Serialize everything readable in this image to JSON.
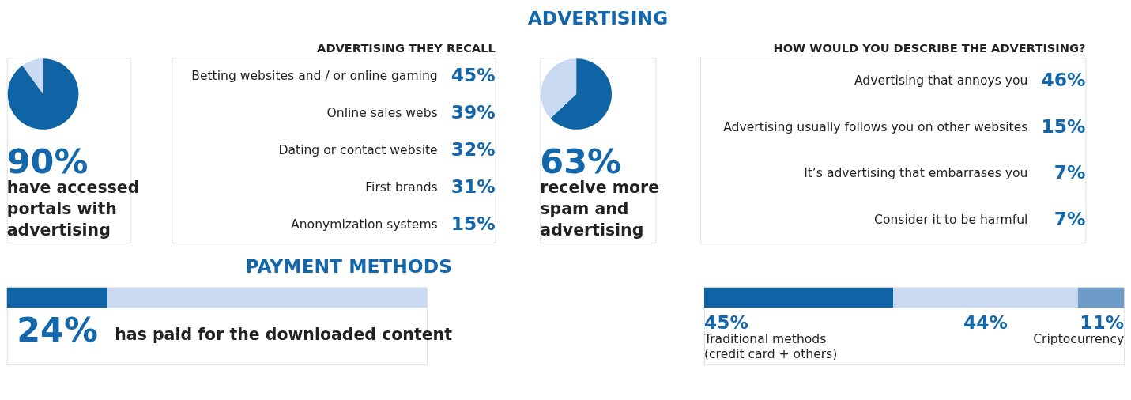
{
  "chart_data": [
    {
      "type": "pie",
      "categories": [
        null,
        null
      ],
      "values": [
        90,
        10
      ],
      "colors": [
        "#0f64a5",
        "#c9d9f1"
      ],
      "value_labels": [
        "90%",
        null
      ],
      "annotations": [
        "have accessed\nportals with\nadvertising"
      ]
    },
    {
      "type": "other",
      "title": "ADVERTISING THEY RECALL",
      "categories": [
        "Betting websites and / or online gaming",
        "Online sales webs",
        "Dating or contact website",
        "First brands",
        "Anonymization systems"
      ],
      "values": [
        45,
        39,
        32,
        31,
        15
      ],
      "value_labels": [
        "45%",
        "39%",
        "32%",
        "31%",
        "15%"
      ]
    },
    {
      "type": "pie",
      "title": "ADVERTISING",
      "categories": [
        null,
        null
      ],
      "values": [
        63,
        37
      ],
      "colors": [
        "#0f64a5",
        "#c9d9f1"
      ],
      "value_labels": [
        "63%",
        null
      ],
      "annotations": [
        "receive more\nspam and\nadvertising"
      ]
    },
    {
      "type": "other",
      "title": "HOW WOULD YOU DESCRIBE THE ADVERTISING?",
      "categories": [
        "Advertising that annoys you",
        "Advertising usually follows you on other websites",
        "It’s advertising that embarrases you",
        "Consider it to be harmful"
      ],
      "values": [
        46,
        15,
        7,
        7
      ],
      "value_labels": [
        "46%",
        "15%",
        "7%",
        "7%"
      ]
    },
    {
      "type": "bar",
      "orientation": "horizontal",
      "stacked": true,
      "title": "PAYMENT METHODS",
      "categories": [
        null
      ],
      "annotations": [
        "has paid for the downloaded content"
      ],
      "series": [
        {
          "color": "#0f64a5",
          "values": [
            24
          ],
          "value_labels": [
            "24%"
          ]
        },
        {
          "color": "#c9d9f1",
          "values": [
            76
          ],
          "value_labels": [
            null
          ]
        }
      ]
    },
    {
      "type": "bar",
      "orientation": "horizontal",
      "stacked": true,
      "categories": [
        null
      ],
      "series": [
        {
          "name": "Traditional methods\n(credit card + others)",
          "color": "#0f64a5",
          "values": [
            45
          ],
          "value_labels": [
            "45%"
          ]
        },
        {
          "color": "#c9d9f1",
          "values": [
            44
          ],
          "value_labels": [
            "44%"
          ]
        },
        {
          "name": "Criptocurrency",
          "color": "#6f9bc8",
          "values": [
            11
          ],
          "value_labels": [
            "11%"
          ]
        }
      ]
    }
  ]
}
